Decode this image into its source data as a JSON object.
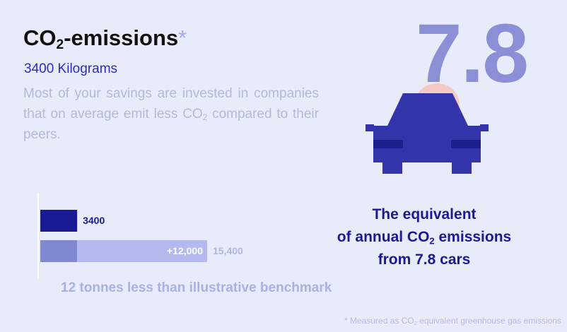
{
  "header": {
    "title": {
      "main": "CO",
      "sub": "2",
      "rest": "-emissions",
      "mark": "*"
    },
    "subtitle": "3400 Kilograms"
  },
  "description": {
    "before": "Most of your savings are invested in companies that on average emit less CO",
    "sub": "2",
    "after": " compared to their peers."
  },
  "big_number": "7.8",
  "chart_data": {
    "type": "stacked-bar",
    "xlim": [
      0,
      15400
    ],
    "bars": [
      {
        "values": [
          3400
        ],
        "colors": [
          "#1a1a96"
        ]
      },
      {
        "values": [
          3400,
          12000
        ],
        "colors": [
          "#8088d2",
          "#b3b9ec"
        ],
        "value_labels": [
          null,
          "+12,000"
        ],
        "total_label": "15,400"
      }
    ]
  },
  "benchmark": "12 tonnes less than illustrative benchmark",
  "equivalent": {
    "line1": "The equivalent",
    "line2_before": "of annual CO",
    "line2_sub": "2",
    "line2_after": " emissions",
    "line3": "from 7.8 cars"
  },
  "footnote": {
    "before": "* Measured as CO",
    "sub": "2",
    "after": " equivalent greenhouse gas emissions"
  }
}
